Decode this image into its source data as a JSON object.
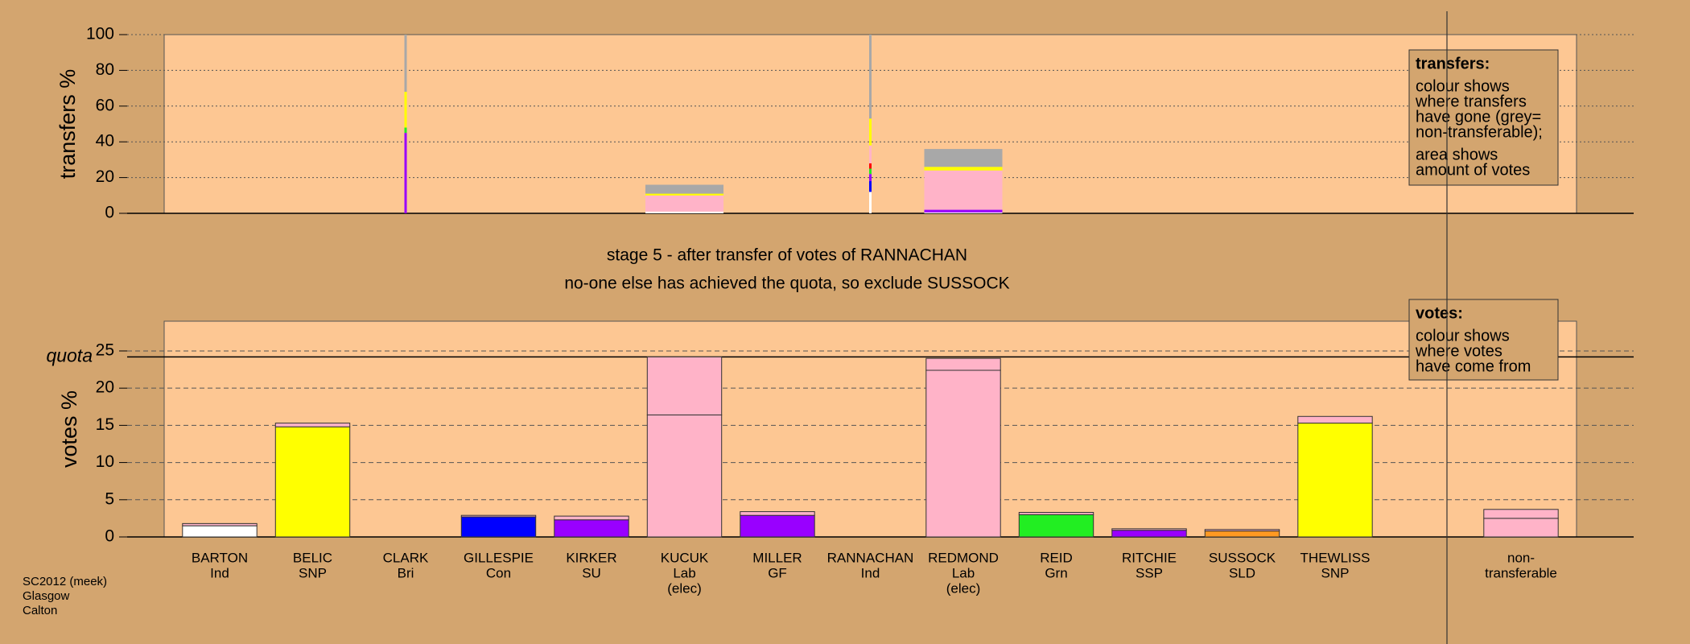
{
  "chart_data": [
    {
      "type": "stacked-bar",
      "ylabel": "transfers %",
      "ylim": [
        0,
        100
      ],
      "yticks": [
        0,
        20,
        40,
        60,
        80,
        100
      ],
      "grid": true,
      "series": [
        {
          "color": "#ffffff",
          "values": [
            0,
            0,
            0,
            0,
            0,
            1,
            0,
            12,
            0.5,
            0,
            0,
            0,
            0,
            0
          ]
        },
        {
          "color": "#0000ff",
          "values": [
            0,
            0,
            0,
            0,
            0,
            0,
            0,
            6,
            0,
            0,
            0,
            0,
            0,
            0
          ]
        },
        {
          "color": "#9900ff",
          "values": [
            0,
            0,
            45,
            0,
            0,
            0,
            0,
            4,
            1.5,
            0,
            0,
            0,
            0,
            0
          ]
        },
        {
          "color": "#22ee22",
          "values": [
            0,
            0,
            3,
            0,
            0,
            0,
            0,
            3,
            0,
            0,
            0,
            0,
            0,
            0
          ]
        },
        {
          "color": "#ff0000",
          "values": [
            0,
            0,
            0,
            0,
            0,
            0,
            0,
            3,
            0,
            0,
            0,
            0,
            0,
            0
          ]
        },
        {
          "color": "#ffb3c8",
          "values": [
            0,
            0,
            0,
            0,
            0,
            9,
            0,
            10,
            22,
            0,
            0,
            0,
            0,
            0
          ]
        },
        {
          "color": "#ffff00",
          "values": [
            0,
            0,
            20,
            0,
            0,
            1,
            0,
            15,
            2,
            0,
            0,
            0,
            0,
            0
          ]
        },
        {
          "color": "#a8a8a8",
          "values": [
            0,
            0,
            32,
            0,
            0,
            5,
            0,
            47,
            10,
            0,
            0,
            0,
            0,
            0
          ]
        }
      ],
      "note": {
        "title": "transfers:",
        "lines": [
          "colour shows",
          "where transfers",
          "have gone (grey=",
          "non-transferable);",
          "area shows",
          "amount of votes"
        ]
      }
    },
    {
      "type": "stacked-bar",
      "ylabel": "votes %",
      "title": [
        "stage 5 - after transfer of votes of RANNACHAN",
        "no-one else has achieved the quota, so exclude SUSSOCK"
      ],
      "categories": [
        [
          "BARTON",
          "Ind"
        ],
        [
          "BELIC",
          "SNP"
        ],
        [
          "CLARK",
          "Bri"
        ],
        [
          "GILLESPIE",
          "Con"
        ],
        [
          "KIRKER",
          "SU"
        ],
        [
          "KUCUK",
          "Lab",
          "(elec)"
        ],
        [
          "MILLER",
          "GF"
        ],
        [
          "RANNACHAN",
          "Ind"
        ],
        [
          "REDMOND",
          "Lab",
          "(elec)"
        ],
        [
          "REID",
          "Grn"
        ],
        [
          "RITCHIE",
          "SSP"
        ],
        [
          "SUSSOCK",
          "SLD"
        ],
        [
          "THEWLISS",
          "SNP"
        ],
        [
          "non-",
          "transferable"
        ]
      ],
      "ylim": [
        0,
        29
      ],
      "yticks": [
        0,
        5,
        10,
        15,
        20,
        25
      ],
      "grid": true,
      "quota": {
        "label": "quota",
        "value": 24.2
      },
      "series": [
        {
          "colors": [
            "#ffffff",
            "#ffff00",
            "#ffffff",
            "#0000ff",
            "#9900ff",
            "#ffb3c8",
            "#9900ff",
            "#ffffff",
            "#ffb3c8",
            "#22ee22",
            "#9900ff",
            "#ff9922",
            "#ffff00",
            "#ffb3c8"
          ],
          "values": [
            1.5,
            14.8,
            0,
            2.7,
            2.3,
            16.4,
            2.9,
            0,
            22.4,
            3.0,
            0.9,
            0.8,
            15.3,
            2.5
          ]
        },
        {
          "color": "#ffb3c8",
          "values": [
            0.3,
            0.5,
            0,
            0.2,
            0.5,
            7.8,
            0.5,
            0,
            1.6,
            0.3,
            0.2,
            0.2,
            0.9,
            1.2
          ]
        }
      ],
      "note": {
        "title": "votes:",
        "lines": [
          "colour shows",
          "where votes",
          "have come from"
        ]
      }
    }
  ],
  "footer": [
    "SC2012 (meek)",
    "Glasgow",
    "Calton"
  ]
}
